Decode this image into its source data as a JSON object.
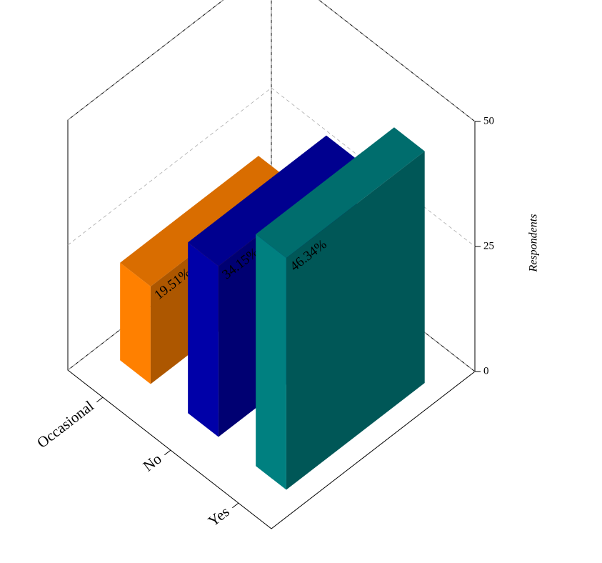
{
  "chart_data": {
    "type": "bar3d",
    "categories": [
      "Occasional",
      "No",
      "Yes"
    ],
    "values": [
      19.51,
      34.15,
      46.34
    ],
    "value_labels": [
      "19.51%",
      "34.15%",
      "46.34%"
    ],
    "colors": [
      "#ff8000",
      "#0000a8",
      "#008080"
    ],
    "y_label": "Respondents",
    "ylim": [
      0,
      50
    ],
    "yticks": [
      0,
      25,
      50
    ],
    "grid": true
  }
}
